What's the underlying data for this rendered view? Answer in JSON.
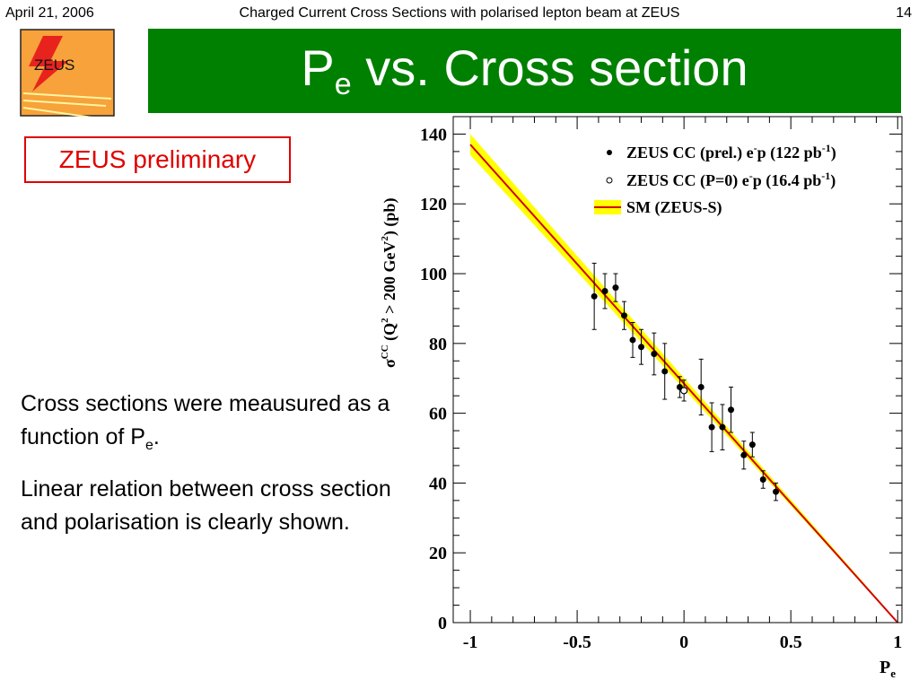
{
  "header": {
    "date": "April 21, 2006",
    "title": "Charged Current Cross Sections with polarised lepton beam at ZEUS",
    "page_number": "14"
  },
  "logo": {
    "text": "ZEUS"
  },
  "slide_title": {
    "main": "P",
    "subscript": "e",
    "rest": " vs. Cross section"
  },
  "preliminary_label": "ZEUS preliminary",
  "body": {
    "para1_text": "Cross sections were meausured as a function of P",
    "para1_sub": "e",
    "para1_end": ".",
    "para2": "Linear relation between cross section and polarisation is clearly shown."
  },
  "colors": {
    "banner": "#008000",
    "band": "#ffff00",
    "sm_line": "#d00000",
    "prelim_border": "#e00000"
  },
  "chart_data": {
    "type": "scatter",
    "xlabel": "P",
    "xlabel_sub": "e",
    "ylabel": "σ^CC (Q^2 > 200 GeV^2) (pb)",
    "xlim": [
      -1.08,
      1.02
    ],
    "ylim": [
      0,
      145
    ],
    "x_ticks": [
      "-1",
      "-0.5",
      "0",
      "0.5",
      "1"
    ],
    "y_ticks": [
      "0",
      "20",
      "40",
      "60",
      "80",
      "100",
      "120",
      "140"
    ],
    "legend_position": "top-right",
    "legend": [
      {
        "marker": "filled-circle",
        "label_main": "ZEUS CC (prel.) e",
        "label_sup": "-",
        "label_mid": "p (122 pb",
        "label_sup2": "-1",
        "label_end": ")"
      },
      {
        "marker": "open-circle",
        "label_main": "ZEUS CC (P=0) e",
        "label_sup": "-",
        "label_mid": "p (16.4 pb",
        "label_sup2": "-1",
        "label_end": ")"
      },
      {
        "marker": "line-band",
        "label_main": "SM (ZEUS-S)",
        "label_sup": "",
        "label_mid": "",
        "label_sup2": "",
        "label_end": ""
      }
    ],
    "series": [
      {
        "name": "ZEUS CC (prel.) e-p (122 pb-1)",
        "marker": "filled",
        "points": [
          {
            "x": -0.42,
            "y": 93.5,
            "err": 9.5
          },
          {
            "x": -0.37,
            "y": 95.0,
            "err": 5.0
          },
          {
            "x": -0.32,
            "y": 96.0,
            "err": 4.0
          },
          {
            "x": -0.28,
            "y": 88.0,
            "err": 4.0
          },
          {
            "x": -0.24,
            "y": 81.0,
            "err": 5.0
          },
          {
            "x": -0.2,
            "y": 79.0,
            "err": 5.0
          },
          {
            "x": -0.14,
            "y": 77.0,
            "err": 6.0
          },
          {
            "x": -0.09,
            "y": 72.0,
            "err": 8.0
          },
          {
            "x": -0.02,
            "y": 67.5,
            "err": 3.0
          },
          {
            "x": 0.08,
            "y": 67.5,
            "err": 8.0
          },
          {
            "x": 0.13,
            "y": 56.0,
            "err": 7.0
          },
          {
            "x": 0.18,
            "y": 56.0,
            "err": 6.5
          },
          {
            "x": 0.22,
            "y": 61.0,
            "err": 6.5
          },
          {
            "x": 0.28,
            "y": 48.0,
            "err": 4.0
          },
          {
            "x": 0.32,
            "y": 51.0,
            "err": 3.5
          },
          {
            "x": 0.37,
            "y": 41.0,
            "err": 2.5
          },
          {
            "x": 0.43,
            "y": 37.5,
            "err": 2.5
          }
        ]
      },
      {
        "name": "ZEUS CC (P=0) e-p (16.4 pb-1)",
        "marker": "open",
        "points": [
          {
            "x": 0.0,
            "y": 66.5,
            "err": 3.0
          }
        ]
      },
      {
        "name": "SM (ZEUS-S)",
        "marker": "line",
        "line": [
          {
            "x": -1.0,
            "y": 137.0
          },
          {
            "x": 1.0,
            "y": 0.0
          }
        ],
        "band_halfwidth": 3.0
      }
    ]
  }
}
